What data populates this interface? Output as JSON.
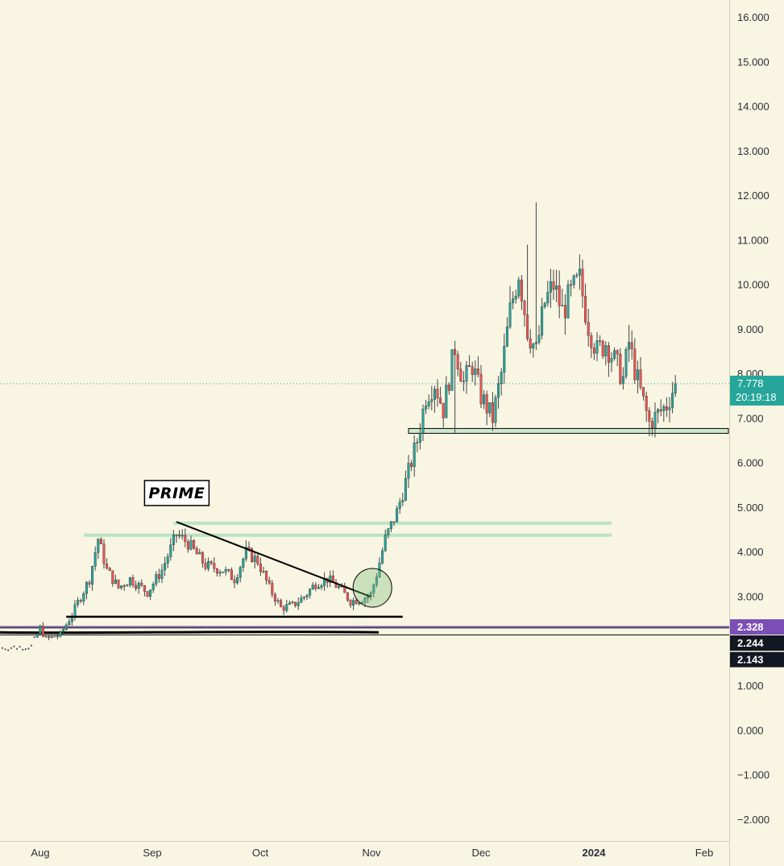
{
  "chart_data": {
    "type": "candlestick",
    "annotation_label": "PRIME",
    "y_axis": {
      "ticks": [
        "16.000",
        "15.000",
        "14.000",
        "13.000",
        "12.000",
        "11.000",
        "10.000",
        "9.000",
        "8.000",
        "7.000",
        "6.000",
        "5.000",
        "4.000",
        "3.000",
        "2.000",
        "1.000",
        "0.000",
        "−1.000",
        "−2.000"
      ],
      "ylim": [
        -2.5,
        16.4
      ]
    },
    "x_axis": {
      "ticks": [
        {
          "label": "Aug",
          "bold": false
        },
        {
          "label": "Sep",
          "bold": false
        },
        {
          "label": "Oct",
          "bold": false
        },
        {
          "label": "Nov",
          "bold": false
        },
        {
          "label": "Dec",
          "bold": false
        },
        {
          "label": "2024",
          "bold": true
        },
        {
          "label": "Feb",
          "bold": false
        }
      ]
    },
    "current_price": {
      "price": 7.778,
      "label": "7.778",
      "countdown": "20:19:18",
      "color": "#26a69a"
    },
    "level_badges": [
      {
        "label": "2.328",
        "price": 2.328,
        "color": "#7b4fb6"
      },
      {
        "label": "2.244",
        "price": 2.244,
        "color": "#131722"
      },
      {
        "label": "2.143",
        "price": 2.143,
        "color": "#131722"
      }
    ],
    "colors": {
      "background": "#f8f5e2",
      "up": "#26a69a",
      "down": "#ef5350",
      "zone": "#b9e3c4",
      "axis_text": "#2a2e39"
    },
    "key_points": [
      {
        "bar": 0,
        "price": 1.85
      },
      {
        "bar": 10,
        "price": 1.88
      },
      {
        "bar": 13,
        "price": 2.3
      },
      {
        "bar": 15,
        "price": 2.05
      },
      {
        "bar": 20,
        "price": 2.15
      },
      {
        "bar": 24,
        "price": 2.6
      },
      {
        "bar": 27,
        "price": 3.0
      },
      {
        "bar": 30,
        "price": 3.4
      },
      {
        "bar": 33,
        "price": 4.3
      },
      {
        "bar": 36,
        "price": 3.6
      },
      {
        "bar": 40,
        "price": 3.2
      },
      {
        "bar": 44,
        "price": 3.4
      },
      {
        "bar": 50,
        "price": 3.1
      },
      {
        "bar": 55,
        "price": 3.6
      },
      {
        "bar": 60,
        "price": 4.4
      },
      {
        "bar": 64,
        "price": 4.2
      },
      {
        "bar": 70,
        "price": 3.7
      },
      {
        "bar": 76,
        "price": 3.6
      },
      {
        "bar": 80,
        "price": 3.4
      },
      {
        "bar": 84,
        "price": 4.0
      },
      {
        "bar": 88,
        "price": 3.8
      },
      {
        "bar": 92,
        "price": 3.2
      },
      {
        "bar": 96,
        "price": 2.75
      },
      {
        "bar": 100,
        "price": 2.8
      },
      {
        "bar": 104,
        "price": 3.0
      },
      {
        "bar": 108,
        "price": 3.3
      },
      {
        "bar": 112,
        "price": 3.4
      },
      {
        "bar": 116,
        "price": 3.2
      },
      {
        "bar": 120,
        "price": 2.9
      },
      {
        "bar": 124,
        "price": 2.95
      },
      {
        "bar": 127,
        "price": 3.05
      },
      {
        "bar": 129,
        "price": 3.5
      },
      {
        "bar": 132,
        "price": 4.3
      },
      {
        "bar": 136,
        "price": 4.9
      },
      {
        "bar": 140,
        "price": 5.8
      },
      {
        "bar": 143,
        "price": 6.5
      },
      {
        "bar": 146,
        "price": 7.5
      },
      {
        "bar": 149,
        "price": 7.8
      },
      {
        "bar": 152,
        "price": 7.2
      },
      {
        "bar": 156,
        "price": 8.6
      },
      {
        "bar": 159,
        "price": 7.8
      },
      {
        "bar": 162,
        "price": 8.2
      },
      {
        "bar": 165,
        "price": 7.5
      },
      {
        "bar": 169,
        "price": 7.0
      },
      {
        "bar": 172,
        "price": 8.0
      },
      {
        "bar": 175,
        "price": 9.4
      },
      {
        "bar": 178,
        "price": 10.3
      },
      {
        "bar": 181,
        "price": 9.0
      },
      {
        "bar": 184,
        "price": 8.5
      },
      {
        "bar": 187,
        "price": 9.6
      },
      {
        "bar": 190,
        "price": 10.0
      },
      {
        "bar": 193,
        "price": 9.4
      },
      {
        "bar": 196,
        "price": 9.8
      },
      {
        "bar": 199,
        "price": 10.1
      },
      {
        "bar": 202,
        "price": 9.1
      },
      {
        "bar": 205,
        "price": 8.5
      },
      {
        "bar": 208,
        "price": 8.7
      },
      {
        "bar": 211,
        "price": 8.3
      },
      {
        "bar": 214,
        "price": 7.9
      },
      {
        "bar": 216,
        "price": 8.7
      },
      {
        "bar": 218,
        "price": 8.1
      },
      {
        "bar": 220,
        "price": 7.6
      },
      {
        "bar": 223,
        "price": 6.9
      },
      {
        "bar": 226,
        "price": 7.1
      },
      {
        "bar": 229,
        "price": 7.3
      },
      {
        "bar": 232,
        "price": 7.778
      }
    ],
    "drawings": {
      "support_level": {
        "price": 6.72,
        "from_bar": 140,
        "to_bar": 236
      },
      "upper_zone_lines": [
        {
          "price": 4.65,
          "from_bar": 59,
          "to_bar": 210
        },
        {
          "price": 4.38,
          "from_bar": 28,
          "to_bar": 210
        }
      ],
      "base_line": {
        "price": 2.55,
        "from_bar": 22,
        "to_bar": 138
      },
      "trendline": {
        "from": {
          "bar": 60,
          "price": 4.68
        },
        "to": {
          "bar": 127,
          "price": 3.0
        }
      },
      "breakout_circle": {
        "bar": 127,
        "price": 3.2
      },
      "label_anchor": {
        "bar": 59,
        "price": 5.1
      }
    }
  }
}
